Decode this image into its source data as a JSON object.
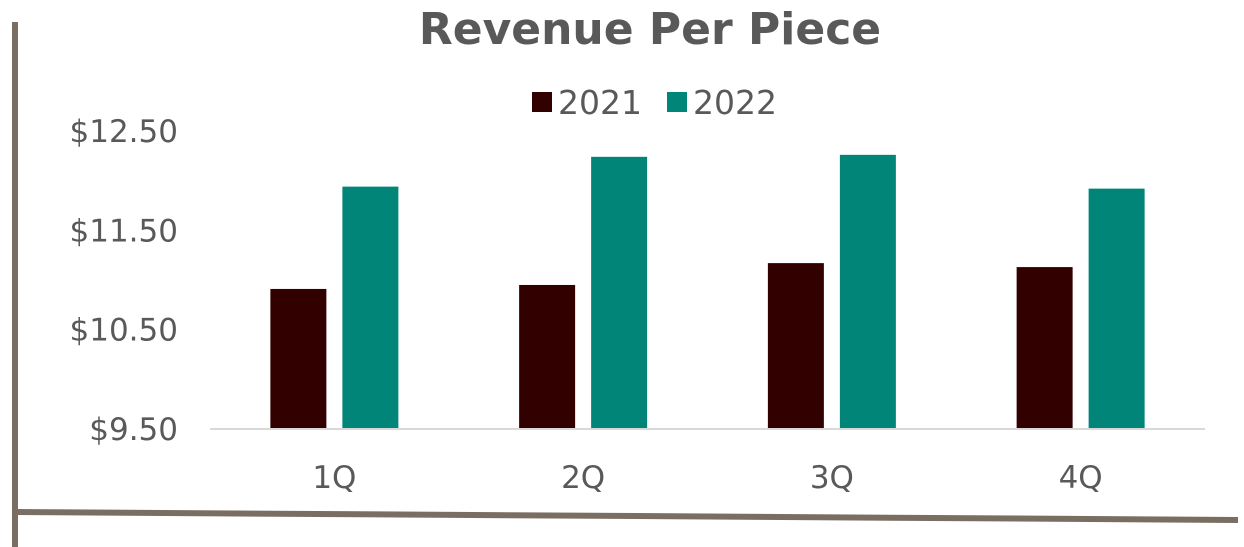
{
  "chart_data": {
    "type": "bar",
    "title": "Revenue Per Piece",
    "categories": [
      "1Q",
      "2Q",
      "3Q",
      "4Q"
    ],
    "series": [
      {
        "name": "2021",
        "color": "#330000",
        "values": [
          10.91,
          10.95,
          11.17,
          11.13
        ]
      },
      {
        "name": "2022",
        "color": "#008578",
        "values": [
          11.94,
          12.24,
          12.26,
          11.92
        ]
      }
    ],
    "yticks": [
      "$9.50",
      "$10.50",
      "$11.50",
      "$12.50"
    ],
    "ytick_values": [
      9.5,
      10.5,
      11.5,
      12.5
    ],
    "ylim": [
      9.5,
      12.5
    ],
    "xlabel": "",
    "ylabel": "",
    "grid": false,
    "legend_position": "top"
  },
  "frame_color": "#7a6e62",
  "axis_color": "#d9d9d9"
}
